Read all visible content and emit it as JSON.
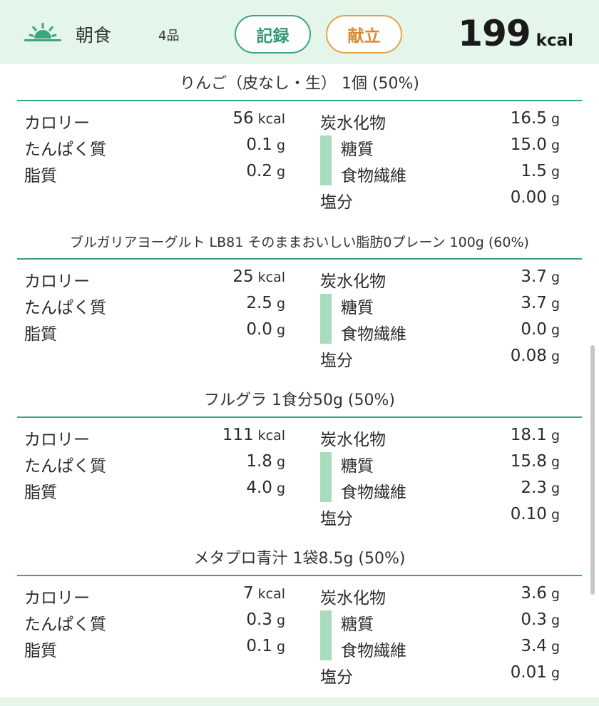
{
  "header": {
    "meal_name": "朝食",
    "item_count": "4品",
    "record_label": "記録",
    "menu_label": "献立",
    "total_kcal": "199",
    "total_unit": "kcal",
    "icon": "sunrise-icon",
    "accent_green": "#3aa681",
    "accent_orange": "#e8a14a",
    "header_bg": "#e4f5ea"
  },
  "labels": {
    "calorie": "カロリー",
    "protein": "たんぱく質",
    "fat": "脂質",
    "carbs": "炭水化物",
    "sugar": "糖質",
    "fiber": "食物繊維",
    "salt": "塩分",
    "unit_kcal": "kcal",
    "unit_g": "g"
  },
  "foods": [
    {
      "name": "りんご（皮なし・生） 1個  (50%)",
      "kcal": "56",
      "protein": "0.1",
      "fat": "0.2",
      "carbs": "16.5",
      "sugar": "15.0",
      "fiber": "1.5",
      "salt": "0.00"
    },
    {
      "name": "ブルガリアヨーグルト LB81 そのままおいしい脂肪0プレーン 100g  (60%)",
      "kcal": "25",
      "protein": "2.5",
      "fat": "0.0",
      "carbs": "3.7",
      "sugar": "3.7",
      "fiber": "0.0",
      "salt": "0.08"
    },
    {
      "name": "フルグラ 1食分50g  (50%)",
      "kcal": "111",
      "protein": "1.8",
      "fat": "4.0",
      "carbs": "18.1",
      "sugar": "15.8",
      "fiber": "2.3",
      "salt": "0.10"
    },
    {
      "name": "メタプロ青汁 1袋8.5g  (50%)",
      "kcal": "7",
      "protein": "0.3",
      "fat": "0.1",
      "carbs": "3.6",
      "sugar": "0.3",
      "fiber": "3.4",
      "salt": "0.01"
    }
  ]
}
